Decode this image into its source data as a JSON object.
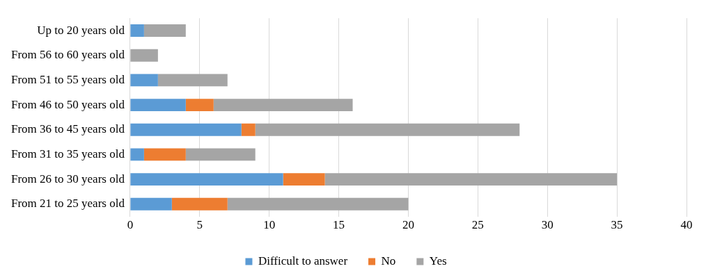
{
  "chart_data": {
    "type": "bar",
    "orientation": "horizontal",
    "stacked": true,
    "categories": [
      "Up to 20 years old",
      "From 56 to 60 years old",
      "From 51 to 55 years old",
      "From 46 to 50 years old",
      "From 36 to 45 years old",
      "From 31 to 35 years old",
      "From 26 to 30 years old",
      "From 21 to 25 years old"
    ],
    "series": [
      {
        "name": "Difficult to answer",
        "color": "#5b9bd5",
        "values": [
          1,
          0,
          2,
          4,
          8,
          1,
          11,
          3
        ]
      },
      {
        "name": "No",
        "color": "#ed7d31",
        "values": [
          0,
          0,
          0,
          2,
          1,
          3,
          3,
          4
        ]
      },
      {
        "name": "Yes",
        "color": "#a5a5a5",
        "values": [
          3,
          2,
          5,
          10,
          19,
          5,
          21,
          13
        ]
      }
    ],
    "xlim": [
      0,
      40
    ],
    "xticks": [
      0,
      5,
      10,
      15,
      20,
      25,
      30,
      35,
      40
    ],
    "grid": "x",
    "legend": "bottom"
  }
}
